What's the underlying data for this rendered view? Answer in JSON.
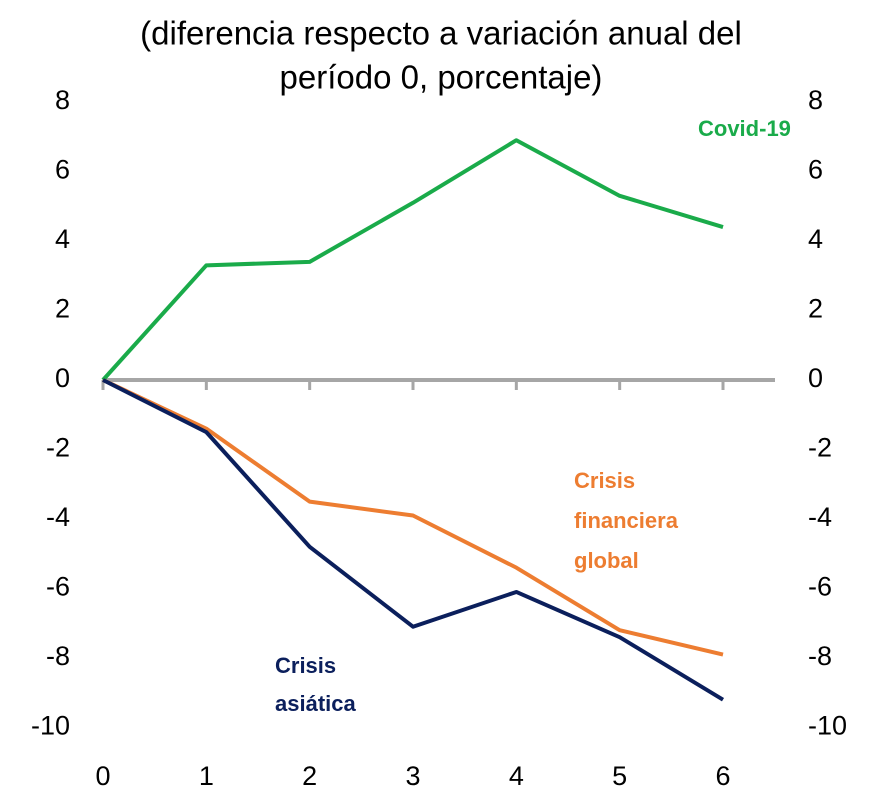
{
  "chart_data": {
    "type": "line",
    "subtitle": [
      "(diferencia respecto a variación anual del",
      "período 0, porcentaje)"
    ],
    "x": [
      0,
      1,
      2,
      3,
      4,
      5,
      6
    ],
    "xlim": [
      0,
      6
    ],
    "xticks": [
      0,
      1,
      2,
      3,
      4,
      5,
      6
    ],
    "ylim": [
      -10,
      8
    ],
    "yticks": [
      -10,
      -8,
      -6,
      -4,
      -2,
      0,
      2,
      4,
      6,
      8
    ],
    "y2lim": [
      -10,
      8
    ],
    "y2ticks": [
      -10,
      -8,
      -6,
      -4,
      -2,
      0,
      2,
      4,
      6,
      8
    ],
    "grid": false,
    "series": [
      {
        "name": "Covid-19",
        "color": "#1aab4a",
        "values": [
          0,
          3.3,
          3.4,
          5.1,
          6.9,
          5.3,
          4.4
        ]
      },
      {
        "name": "Crisis financiera global",
        "color": "#ed7d31",
        "values": [
          0,
          -1.4,
          -3.5,
          -3.9,
          -5.4,
          -7.2,
          -7.9
        ]
      },
      {
        "name": "Crisis asiática",
        "color": "#0b1f5c",
        "values": [
          0,
          -1.5,
          -4.8,
          -7.1,
          -6.1,
          -7.4,
          -9.2
        ]
      }
    ]
  }
}
